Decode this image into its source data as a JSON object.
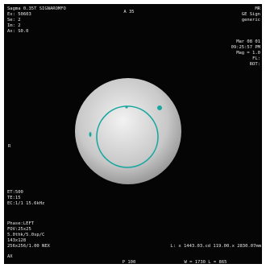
{
  "viewer": {
    "top_left": [
      "Sagma 0.35T SIGNAROMFO",
      "Ex: 50603",
      "Se: 2",
      "Im: 2",
      "Ax: S0.0"
    ],
    "top_center": "A 35",
    "top_right": [
      "MR",
      "GE Sign",
      "generic",
      "Mar 08 01",
      "09:25:57 PM",
      "Mag = 1.0",
      "FL:",
      "ROT:"
    ],
    "left_marker": "R",
    "bottom_left": [
      "ET:500",
      "TE:15",
      "EC:1/1 15.6kHz",
      "Phase:LEFT",
      "FOV:25x25",
      "5.0thk/5.0sp/C",
      "143x128",
      "256x256/1.00 NEX",
      "AX"
    ],
    "measurement": "L: x 1443.03.cd 119.00.x 2830.07mm",
    "bottom_center": "P 100",
    "window_level": "W = 1730 L = 865"
  }
}
